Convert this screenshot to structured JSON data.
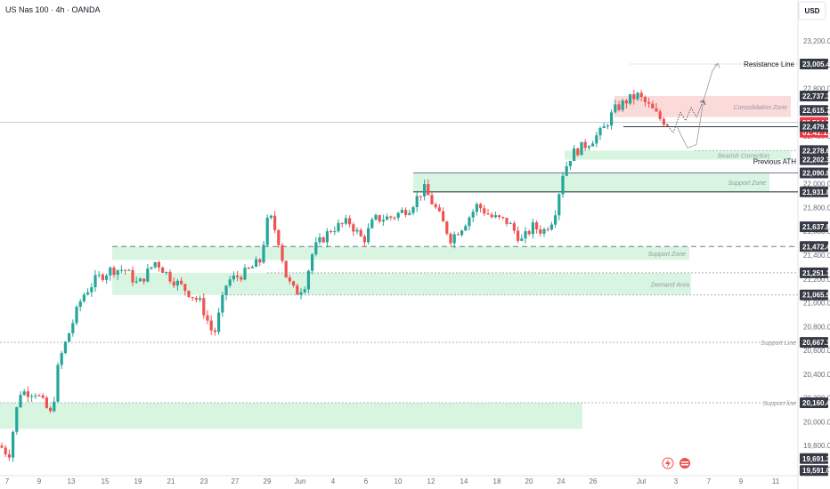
{
  "header": {
    "symbol_title": "US Nas 100 · 4h · OANDA",
    "currency": "USD"
  },
  "colors": {
    "up": "#26a69a",
    "down": "#ef5350",
    "zone_green": "#d8f5e1",
    "zone_red": "#fbdada",
    "label_dark": "#363a45",
    "label_red": "#f23645",
    "axis_text": "#6a6d78",
    "path": "#9598a1"
  },
  "chart_data": {
    "type": "candlestick",
    "title": "US Nas 100 · 4h · OANDA",
    "ylim": [
      19600,
      23400
    ],
    "x_tick_labels": [
      "7",
      "9",
      "13",
      "15",
      "19",
      "21",
      "23",
      "27",
      "29",
      "Jun",
      "4",
      "6",
      "10",
      "12",
      "14",
      "18",
      "20",
      "24",
      "26",
      "Jul",
      "3",
      "7",
      "9",
      "11"
    ],
    "y_tick_labels": [
      "23,200.0",
      "23,000.0",
      "22,800.0",
      "22,600.0",
      "22,400.0",
      "22,200.0",
      "22,000.0",
      "21,800.0",
      "21,600.0",
      "21,400.0",
      "21,200.0",
      "21,000.0",
      "20,800.0",
      "20,600.0",
      "20,400.0",
      "20,200.0",
      "20,000.0",
      "19,800.0",
      "19,600.0"
    ],
    "y_tick_values": [
      23200,
      23000,
      22800,
      22600,
      22400,
      22200,
      22000,
      21800,
      21600,
      21400,
      21200,
      21000,
      20800,
      20600,
      20400,
      20200,
      20000,
      19800,
      19600
    ],
    "price_levels": [
      {
        "value": 23005.4,
        "label": "23,005.4",
        "style": "dark"
      },
      {
        "value": 22737.3,
        "label": "22,737.3",
        "style": "dark"
      },
      {
        "value": 22615.7,
        "label": "22,615.7",
        "style": "dark"
      },
      {
        "value": 22514.7,
        "label": "22,514.7",
        "style": "red"
      },
      {
        "value": 22479.1,
        "label": "22,479.1",
        "style": "dark"
      },
      {
        "value": 22278.6,
        "label": "22,278.6",
        "style": "dark"
      },
      {
        "value": 22202.3,
        "label": "22,202.3",
        "style": "dark"
      },
      {
        "value": 22090.8,
        "label": "22,090.8",
        "style": "dark"
      },
      {
        "value": 21931.8,
        "label": "21,931.8",
        "style": "dark"
      },
      {
        "value": 21637.8,
        "label": "21,637.8",
        "style": "dark"
      },
      {
        "value": 21472.4,
        "label": "21,472.4",
        "style": "dark"
      },
      {
        "value": 21251.1,
        "label": "21,251.1",
        "style": "dark"
      },
      {
        "value": 21065.9,
        "label": "21,065.9",
        "style": "dark"
      },
      {
        "value": 20667.1,
        "label": "20,667.1",
        "style": "dark"
      },
      {
        "value": 20160.4,
        "label": "20,160.4",
        "style": "dark"
      },
      {
        "value": 19691.3,
        "label": "19,691.3",
        "style": "dark"
      },
      {
        "value": 19591.0,
        "label": "19,591.0",
        "style": "dark"
      }
    ],
    "countdown": "01:41:11",
    "zones": [
      {
        "name": "Consolidation Zone",
        "top": 22737.3,
        "bottom": 22560,
        "color": "red"
      },
      {
        "name": "Bearish Correction",
        "top": 22278.6,
        "bottom": 22202.3,
        "color": "green"
      },
      {
        "name": "Support Zone",
        "top": 22090.8,
        "bottom": 21931.8,
        "color": "green"
      },
      {
        "name": "Support Zone",
        "top": 21472.4,
        "bottom": 21360,
        "color": "green"
      },
      {
        "name": "Demand Area",
        "top": 21251.1,
        "bottom": 21065.9,
        "color": "green"
      },
      {
        "name": "",
        "top": 20160.4,
        "bottom": 19940,
        "color": "green"
      }
    ],
    "annotations": [
      {
        "text": "Resistance Line",
        "value": 23005.4
      },
      {
        "text": "Previous ATH",
        "value": 22202.3
      },
      {
        "text": "Support Line",
        "value": 20667.1
      },
      {
        "text": "Support line",
        "value": 20160.4
      }
    ]
  }
}
